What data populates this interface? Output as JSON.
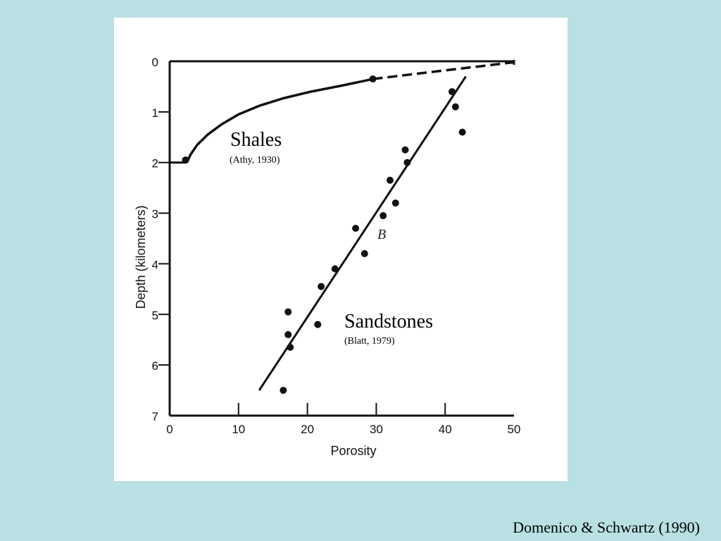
{
  "citation": "Domenico & Schwartz (1990)",
  "chart_data": {
    "type": "scatter",
    "title": "",
    "xlabel": "Porosity",
    "ylabel": "Depth (kilometers)",
    "xlim": [
      0,
      50
    ],
    "ylim": [
      0,
      7
    ],
    "y_inverted": true,
    "grid": false,
    "x_ticks": [
      0,
      10,
      20,
      30,
      40,
      50
    ],
    "y_ticks": [
      0,
      1,
      2,
      3,
      4,
      5,
      6,
      7
    ],
    "annotations": {
      "shales_label": "Shales",
      "shales_source": "(Athy, 1930)",
      "sandstones_label": "Sandstones",
      "sandstones_source": "(Blatt, 1979)",
      "curve_marker": "B"
    },
    "series": [
      {
        "kind": "curve",
        "points": [
          {
            "x": 2.5,
            "y": 2.0
          },
          {
            "x": 3.0,
            "y": 1.85
          },
          {
            "x": 4.0,
            "y": 1.65
          },
          {
            "x": 5.5,
            "y": 1.45
          },
          {
            "x": 7.5,
            "y": 1.25
          },
          {
            "x": 10.0,
            "y": 1.05
          },
          {
            "x": 13.0,
            "y": 0.88
          },
          {
            "x": 16.5,
            "y": 0.73
          },
          {
            "x": 20.5,
            "y": 0.6
          },
          {
            "x": 25.0,
            "y": 0.48
          },
          {
            "x": 29.5,
            "y": 0.35
          }
        ],
        "dashed_extension": [
          {
            "x": 29.5,
            "y": 0.35
          },
          {
            "x": 35.0,
            "y": 0.26
          },
          {
            "x": 40.0,
            "y": 0.18
          },
          {
            "x": 45.0,
            "y": 0.1
          },
          {
            "x": 50.0,
            "y": 0.02
          }
        ],
        "data_points": [
          {
            "x": 2.3,
            "y": 1.95
          },
          {
            "x": 29.5,
            "y": 0.35
          }
        ]
      },
      {
        "kind": "fit_line",
        "line": [
          {
            "x": 13.0,
            "y": 6.5
          },
          {
            "x": 43.0,
            "y": 0.3
          }
        ],
        "data_points": [
          {
            "x": 16.5,
            "y": 6.5
          },
          {
            "x": 17.5,
            "y": 5.65
          },
          {
            "x": 17.2,
            "y": 5.4
          },
          {
            "x": 17.2,
            "y": 4.95
          },
          {
            "x": 21.5,
            "y": 5.2
          },
          {
            "x": 22.0,
            "y": 4.45
          },
          {
            "x": 24.0,
            "y": 4.1
          },
          {
            "x": 27.0,
            "y": 3.3
          },
          {
            "x": 28.3,
            "y": 3.8
          },
          {
            "x": 31.0,
            "y": 3.05
          },
          {
            "x": 32.0,
            "y": 2.35
          },
          {
            "x": 32.8,
            "y": 2.8
          },
          {
            "x": 34.2,
            "y": 1.75
          },
          {
            "x": 34.5,
            "y": 2.0
          },
          {
            "x": 41.0,
            "y": 0.6
          },
          {
            "x": 41.5,
            "y": 0.9
          },
          {
            "x": 42.5,
            "y": 1.4
          }
        ]
      }
    ],
    "colors": {
      "ink": "#111111",
      "background": "#b9e0e3",
      "panel": "#ffffff"
    }
  }
}
